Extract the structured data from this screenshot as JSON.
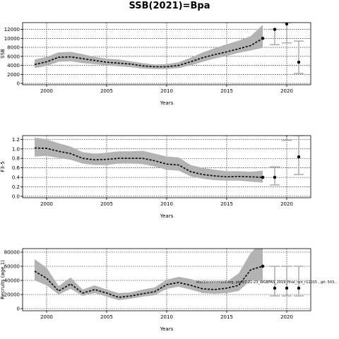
{
  "figure": {
    "title": "SSB(2021)=Bpa"
  },
  "chart_data": [
    {
      "type": "line",
      "title": "",
      "xlabel": "Years",
      "ylabel": "SSB",
      "xlim": [
        1998,
        2022
      ],
      "ylim": [
        -300,
        13500
      ],
      "xticks": [
        2000,
        2005,
        2010,
        2015,
        2020
      ],
      "yticks": [
        0,
        2000,
        4000,
        6000,
        8000,
        10000,
        12000
      ],
      "x": [
        1999,
        2000,
        2001,
        2002,
        2003,
        2004,
        2005,
        2006,
        2007,
        2008,
        2009,
        2010,
        2011,
        2012,
        2013,
        2014,
        2015,
        2016,
        2017,
        2018
      ],
      "series": [
        {
          "name": "",
          "values": [
            4200,
            4800,
            5800,
            5900,
            5500,
            5100,
            4700,
            4500,
            4300,
            3900,
            3700,
            3700,
            4000,
            4800,
            5700,
            6400,
            7000,
            7700,
            8400,
            10000
          ]
        }
      ],
      "band_upper": [
        5300,
        5900,
        6900,
        7000,
        6500,
        5900,
        5500,
        5300,
        4900,
        4500,
        4200,
        4300,
        4700,
        5700,
        6900,
        7800,
        8700,
        9500,
        10500,
        13000
      ],
      "band_lower": [
        3400,
        3900,
        4800,
        4900,
        4500,
        4300,
        4000,
        3800,
        3600,
        3300,
        3200,
        3200,
        3400,
        4000,
        4800,
        5500,
        6100,
        6800,
        7300,
        7900
      ],
      "projection": [
        {
          "x": 2019,
          "y": 12000,
          "low": 8600,
          "high": 12000
        },
        {
          "x": 2020,
          "y": 13200,
          "low": 9000,
          "high": 13500
        },
        {
          "x": 2021,
          "y": 4700,
          "low": 2200,
          "high": 9400
        }
      ]
    },
    {
      "type": "line",
      "title": "",
      "xlabel": "Years",
      "ylabel": "F3-5",
      "xlim": [
        1998,
        2022
      ],
      "ylim": [
        -0.03,
        1.28
      ],
      "xticks": [
        2000,
        2005,
        2010,
        2015,
        2020
      ],
      "yticks": [
        0.0,
        0.2,
        0.4,
        0.6,
        0.8,
        1.0,
        1.2
      ],
      "ytick_labels": [
        "0.0",
        "0.2",
        "0.4",
        "0.6",
        "0.8",
        "1.0",
        "1.2"
      ],
      "x": [
        1999,
        2000,
        2001,
        2002,
        2003,
        2004,
        2005,
        2006,
        2007,
        2008,
        2009,
        2010,
        2011,
        2012,
        2013,
        2014,
        2015,
        2016,
        2017,
        2018
      ],
      "series": [
        {
          "name": "",
          "values": [
            1.02,
            1.01,
            0.95,
            0.9,
            0.8,
            0.77,
            0.78,
            0.8,
            0.8,
            0.8,
            0.75,
            0.68,
            0.66,
            0.52,
            0.46,
            0.43,
            0.41,
            0.42,
            0.41,
            0.4
          ]
        }
      ],
      "band_upper": [
        1.24,
        1.2,
        1.12,
        1.05,
        0.93,
        0.9,
        0.92,
        0.95,
        0.95,
        0.96,
        0.9,
        0.84,
        0.82,
        0.66,
        0.6,
        0.56,
        0.53,
        0.53,
        0.52,
        0.54
      ],
      "band_lower": [
        0.84,
        0.85,
        0.81,
        0.77,
        0.69,
        0.66,
        0.66,
        0.69,
        0.69,
        0.68,
        0.63,
        0.56,
        0.54,
        0.42,
        0.37,
        0.34,
        0.33,
        0.33,
        0.31,
        0.29
      ],
      "projection": [
        {
          "x": 2019,
          "y": 0.4,
          "low": 0.24,
          "high": 0.62
        },
        {
          "x": 2020,
          "y": 1.3,
          "low": 1.18,
          "high": 1.3
        },
        {
          "x": 2021,
          "y": 0.83,
          "low": 0.46,
          "high": 1.28
        }
      ]
    },
    {
      "type": "line",
      "title": "",
      "xlabel": "Years",
      "ylabel": "Recruits (age 1)",
      "xlim": [
        1998,
        2022
      ],
      "ylim": [
        -3000,
        85000
      ],
      "xticks": [
        2000,
        2005,
        2010,
        2015,
        2020
      ],
      "yticks": [
        0,
        20000,
        40000,
        60000,
        80000
      ],
      "x": [
        1999,
        2000,
        2001,
        2002,
        2003,
        2004,
        2005,
        2006,
        2007,
        2008,
        2009,
        2010,
        2011,
        2012,
        2013,
        2014,
        2015,
        2016,
        2017,
        2018
      ],
      "series": [
        {
          "name": "",
          "values": [
            53000,
            43000,
            25000,
            35000,
            22000,
            27000,
            22000,
            16000,
            18000,
            21000,
            24000,
            34000,
            37000,
            33000,
            28000,
            27000,
            29000,
            33000,
            55000,
            60000
          ]
        }
      ],
      "band_upper": [
        70000,
        58000,
        32000,
        44000,
        27000,
        33000,
        27000,
        22000,
        23000,
        27000,
        30000,
        41000,
        45000,
        42000,
        37000,
        36000,
        38000,
        50000,
        79000,
        96000
      ],
      "band_lower": [
        40000,
        33000,
        20000,
        28000,
        18000,
        22000,
        17000,
        12000,
        14000,
        17000,
        19000,
        28000,
        31000,
        27000,
        22000,
        21000,
        22000,
        25000,
        40000,
        40000
      ],
      "projection": [
        {
          "x": 2019,
          "y": 29000,
          "low": 18000,
          "high": 60000
        },
        {
          "x": 2020,
          "y": 29000,
          "low": 18000,
          "high": 60000
        },
        {
          "x": 2021,
          "y": 29000,
          "low": 18000,
          "high": 60000
        }
      ],
      "annotation": "stockassessment.org, ple.27.21-23_WGBFAS_2019_final_run_r11015 , git: 503..."
    }
  ]
}
